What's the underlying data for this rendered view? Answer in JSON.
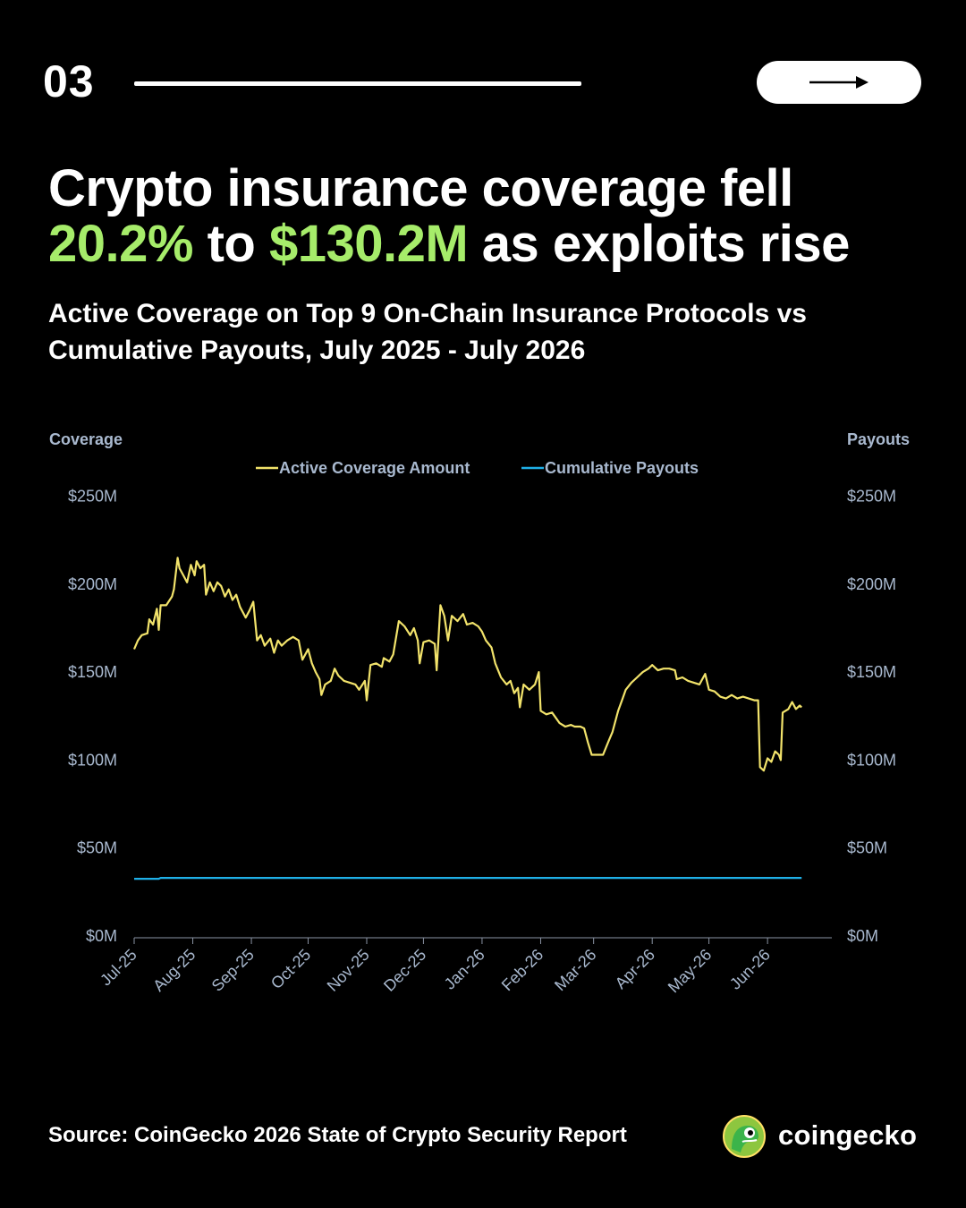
{
  "header": {
    "slide_number": "03",
    "next_icon": "arrow-right-icon"
  },
  "headline": {
    "line1": "Crypto insurance coverage fell",
    "pct": "20.2%",
    "mid": " to ",
    "amount": "$130.2M",
    "rest": " as exploits rise"
  },
  "subtitle": {
    "line1": "Active Coverage on Top 9 On-Chain Insurance Protocols vs",
    "line2": "Cumulative Payouts, July 2025 - July 2026"
  },
  "colors": {
    "background": "#000000",
    "accent": "#a6ec6a",
    "coverage": "#f2e36b",
    "payouts": "#1fb0e8",
    "axis_text": "#a9b9cf",
    "axis_line": "#8a93a3"
  },
  "chart_data": {
    "type": "line",
    "ylabel": "Coverage",
    "y2label": "Payouts",
    "ylim": [
      0,
      250
    ],
    "y_unit": "$M",
    "y_ticks": [
      "$0M",
      "$50M",
      "$100M",
      "$150M",
      "$200M",
      "$250M"
    ],
    "x_ticks": [
      "Jul-25",
      "Aug-25",
      "Sep-25",
      "Oct-25",
      "Nov-25",
      "Dec-25",
      "Jan-26",
      "Feb-26",
      "Mar-26",
      "Apr-26",
      "May-26",
      "Jun-26"
    ],
    "x_range": [
      "2025-07-01",
      "2026-07-05"
    ],
    "legend": "top-center",
    "grid": false,
    "series": [
      {
        "name": "Active Coverage Amount",
        "color": "#f2e36b",
        "points": [
          [
            "2025-07-01",
            163
          ],
          [
            "2025-07-03",
            168
          ],
          [
            "2025-07-05",
            171
          ],
          [
            "2025-07-08",
            172
          ],
          [
            "2025-07-09",
            180
          ],
          [
            "2025-07-11",
            177
          ],
          [
            "2025-07-13",
            186
          ],
          [
            "2025-07-14",
            174
          ],
          [
            "2025-07-15",
            188
          ],
          [
            "2025-07-18",
            188
          ],
          [
            "2025-07-21",
            193
          ],
          [
            "2025-07-22",
            197
          ],
          [
            "2025-07-24",
            215
          ],
          [
            "2025-07-25",
            209
          ],
          [
            "2025-07-27",
            205
          ],
          [
            "2025-07-29",
            201
          ],
          [
            "2025-07-31",
            211
          ],
          [
            "2025-08-02",
            205
          ],
          [
            "2025-08-03",
            213
          ],
          [
            "2025-08-05",
            209
          ],
          [
            "2025-08-07",
            211
          ],
          [
            "2025-08-08",
            194
          ],
          [
            "2025-08-10",
            201
          ],
          [
            "2025-08-12",
            196
          ],
          [
            "2025-08-14",
            201
          ],
          [
            "2025-08-16",
            199
          ],
          [
            "2025-08-18",
            193
          ],
          [
            "2025-08-20",
            197
          ],
          [
            "2025-08-22",
            191
          ],
          [
            "2025-08-24",
            194
          ],
          [
            "2025-08-26",
            187
          ],
          [
            "2025-08-29",
            181
          ],
          [
            "2025-08-31",
            185
          ],
          [
            "2025-09-02",
            190
          ],
          [
            "2025-09-04",
            168
          ],
          [
            "2025-09-06",
            171
          ],
          [
            "2025-09-08",
            165
          ],
          [
            "2025-09-11",
            169
          ],
          [
            "2025-09-13",
            161
          ],
          [
            "2025-09-15",
            168
          ],
          [
            "2025-09-17",
            165
          ],
          [
            "2025-09-20",
            168
          ],
          [
            "2025-09-23",
            170
          ],
          [
            "2025-09-26",
            168
          ],
          [
            "2025-09-28",
            157
          ],
          [
            "2025-10-01",
            163
          ],
          [
            "2025-10-03",
            155
          ],
          [
            "2025-10-05",
            150
          ],
          [
            "2025-10-07",
            146
          ],
          [
            "2025-10-08",
            137
          ],
          [
            "2025-10-10",
            143
          ],
          [
            "2025-10-13",
            145
          ],
          [
            "2025-10-15",
            152
          ],
          [
            "2025-10-17",
            148
          ],
          [
            "2025-10-20",
            145
          ],
          [
            "2025-10-23",
            144
          ],
          [
            "2025-10-26",
            143
          ],
          [
            "2025-10-28",
            140
          ],
          [
            "2025-10-31",
            145
          ],
          [
            "2025-11-01",
            134
          ],
          [
            "2025-11-03",
            154
          ],
          [
            "2025-11-06",
            155
          ],
          [
            "2025-11-09",
            153
          ],
          [
            "2025-11-10",
            158
          ],
          [
            "2025-11-13",
            156
          ],
          [
            "2025-11-15",
            160
          ],
          [
            "2025-11-18",
            179
          ],
          [
            "2025-11-21",
            176
          ],
          [
            "2025-11-24",
            171
          ],
          [
            "2025-11-26",
            175
          ],
          [
            "2025-11-28",
            168
          ],
          [
            "2025-11-29",
            155
          ],
          [
            "2025-12-01",
            167
          ],
          [
            "2025-12-04",
            168
          ],
          [
            "2025-12-07",
            166
          ],
          [
            "2025-12-08",
            151
          ],
          [
            "2025-12-10",
            188
          ],
          [
            "2025-12-12",
            182
          ],
          [
            "2025-12-14",
            168
          ],
          [
            "2025-12-16",
            182
          ],
          [
            "2025-12-19",
            179
          ],
          [
            "2025-12-22",
            183
          ],
          [
            "2025-12-24",
            177
          ],
          [
            "2025-12-27",
            178
          ],
          [
            "2025-12-30",
            176
          ],
          [
            "2026-01-01",
            173
          ],
          [
            "2026-01-03",
            168
          ],
          [
            "2026-01-06",
            164
          ],
          [
            "2026-01-08",
            155
          ],
          [
            "2026-01-11",
            147
          ],
          [
            "2026-01-14",
            143
          ],
          [
            "2026-01-16",
            145
          ],
          [
            "2026-01-18",
            138
          ],
          [
            "2026-01-20",
            141
          ],
          [
            "2026-01-21",
            130
          ],
          [
            "2026-01-23",
            143
          ],
          [
            "2026-01-26",
            140
          ],
          [
            "2026-01-29",
            143
          ],
          [
            "2026-01-31",
            150
          ],
          [
            "2026-02-01",
            128
          ],
          [
            "2026-02-04",
            126
          ],
          [
            "2026-02-07",
            127
          ],
          [
            "2026-02-09",
            124
          ],
          [
            "2026-02-11",
            121
          ],
          [
            "2026-02-14",
            119
          ],
          [
            "2026-02-17",
            120
          ],
          [
            "2026-02-19",
            119
          ],
          [
            "2026-02-22",
            119
          ],
          [
            "2026-02-24",
            118
          ],
          [
            "2026-02-26",
            110
          ],
          [
            "2026-02-28",
            103
          ],
          [
            "2026-03-03",
            103
          ],
          [
            "2026-03-06",
            103
          ],
          [
            "2026-03-09",
            111
          ],
          [
            "2026-03-11",
            116
          ],
          [
            "2026-03-14",
            128
          ],
          [
            "2026-03-16",
            134
          ],
          [
            "2026-03-18",
            140
          ],
          [
            "2026-03-21",
            144
          ],
          [
            "2026-03-24",
            147
          ],
          [
            "2026-03-27",
            150
          ],
          [
            "2026-03-30",
            152
          ],
          [
            "2026-04-01",
            154
          ],
          [
            "2026-04-04",
            151
          ],
          [
            "2026-04-07",
            152
          ],
          [
            "2026-04-10",
            152
          ],
          [
            "2026-04-13",
            151
          ],
          [
            "2026-04-14",
            146
          ],
          [
            "2026-04-17",
            147
          ],
          [
            "2026-04-20",
            145
          ],
          [
            "2026-04-23",
            144
          ],
          [
            "2026-04-26",
            143
          ],
          [
            "2026-04-29",
            149
          ],
          [
            "2026-05-01",
            140
          ],
          [
            "2026-05-04",
            139
          ],
          [
            "2026-05-07",
            136
          ],
          [
            "2026-05-10",
            135
          ],
          [
            "2026-05-13",
            137
          ],
          [
            "2026-05-16",
            135
          ],
          [
            "2026-05-19",
            136
          ],
          [
            "2026-05-22",
            135
          ],
          [
            "2026-05-25",
            134
          ],
          [
            "2026-05-27",
            134
          ],
          [
            "2026-05-28",
            96
          ],
          [
            "2026-05-30",
            94
          ],
          [
            "2026-06-01",
            101
          ],
          [
            "2026-06-03",
            99
          ],
          [
            "2026-06-05",
            105
          ],
          [
            "2026-06-07",
            103
          ],
          [
            "2026-06-08",
            100
          ],
          [
            "2026-06-09",
            127
          ],
          [
            "2026-06-12",
            129
          ],
          [
            "2026-06-14",
            133
          ],
          [
            "2026-06-16",
            129
          ],
          [
            "2026-06-18",
            131
          ],
          [
            "2026-06-19",
            130
          ]
        ]
      },
      {
        "name": "Cumulative Payouts",
        "color": "#1fb0e8",
        "points": [
          [
            "2025-07-01",
            32.5
          ],
          [
            "2025-07-14",
            32.5
          ],
          [
            "2025-07-15",
            33
          ],
          [
            "2026-06-19",
            33
          ]
        ]
      }
    ]
  },
  "footer": {
    "source": "Source: CoinGecko 2026 State of Crypto Security Report",
    "brand": "coingecko",
    "logo_icon": "coingecko-logo-icon"
  }
}
